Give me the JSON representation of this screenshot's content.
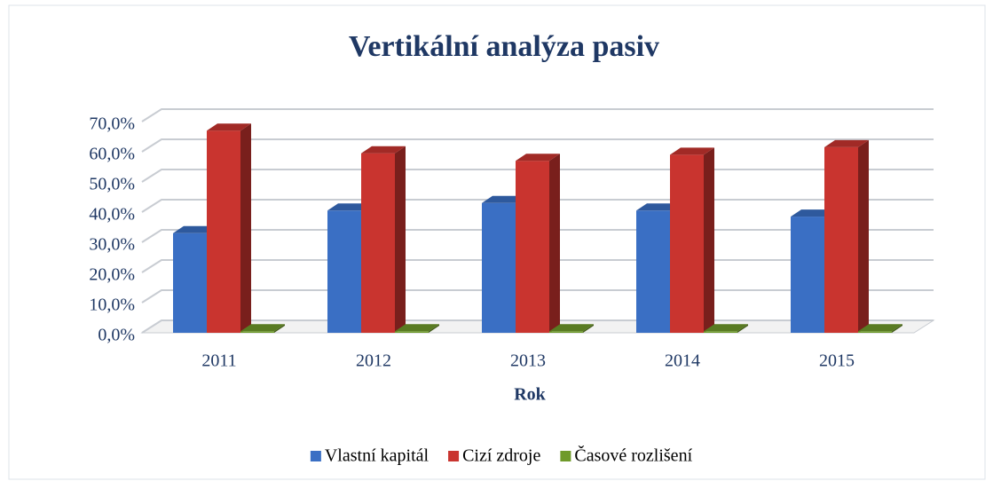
{
  "chart_data": {
    "type": "bar3d",
    "title": "Vertikální analýza pasiv",
    "x_label": "Rok",
    "categories": [
      "2011",
      "2012",
      "2013",
      "2014",
      "2015"
    ],
    "series": [
      {
        "name": "Vlastní kapitál",
        "color": "#3a6fc4",
        "values": [
          33,
          40.5,
          43,
          40.5,
          38.5
        ]
      },
      {
        "name": "Cizí zdroje",
        "color": "#c9342f",
        "values": [
          67,
          59.5,
          57,
          59,
          61.5
        ]
      },
      {
        "name": "Časové rozlišení",
        "color": "#6f9a2a",
        "values": [
          0.5,
          0.5,
          0.5,
          0.5,
          0.5
        ]
      }
    ],
    "ylim": [
      0,
      70
    ],
    "yticks": [
      {
        "value": 0,
        "label": "0,0%"
      },
      {
        "value": 10,
        "label": "10,0%"
      },
      {
        "value": 20,
        "label": "20,0%"
      },
      {
        "value": 30,
        "label": "30,0%"
      },
      {
        "value": 40,
        "label": "40,0%"
      },
      {
        "value": 50,
        "label": "50,0%"
      },
      {
        "value": 60,
        "label": "60,0%"
      },
      {
        "value": 70,
        "label": "70,0%"
      }
    ],
    "grid": true,
    "legend": "bottom"
  }
}
